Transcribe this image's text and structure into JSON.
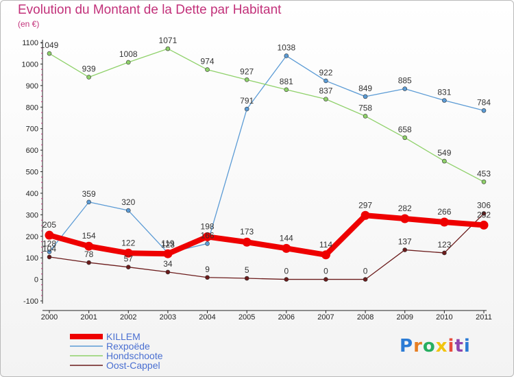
{
  "title": "Evolution du Montant de la Dette par Habitant",
  "subtitle": "(en €)",
  "logo": {
    "text": "Proxiti",
    "colors": [
      "#2b7bd5",
      "#e67e22",
      "#27ae60",
      "#f1c40f",
      "#e74c3c",
      "#8e44ad",
      "#2b7bd5"
    ]
  },
  "chart_data": {
    "type": "line",
    "title": "Evolution du Montant de la Dette par Habitant",
    "subtitle": "(en €)",
    "xlabel": "",
    "ylabel": "",
    "x": [
      "2000",
      "2001",
      "2002",
      "2003",
      "2004",
      "2005",
      "2006",
      "2007",
      "2008",
      "2009",
      "2010",
      "2011"
    ],
    "ylim": [
      -100,
      1100
    ],
    "yticks": [
      -100,
      0,
      100,
      200,
      300,
      400,
      500,
      600,
      700,
      800,
      900,
      1000,
      1100
    ],
    "grid": false,
    "legend_position": "bottom-left",
    "series": [
      {
        "name": "KILLEM",
        "color": "#ee0000",
        "highlight": true,
        "values": [
          205,
          154,
          122,
          119,
          198,
          173,
          144,
          114,
          297,
          282,
          266,
          252
        ],
        "labels": [
          "205",
          "154",
          "122",
          "119",
          "198",
          "173",
          "144",
          "114",
          "297",
          "282",
          "266",
          "252"
        ]
      },
      {
        "name": "Rexpoëde",
        "color": "#5b9bd5",
        "highlight": false,
        "values": [
          128,
          359,
          320,
          123,
          166,
          791,
          1038,
          922,
          849,
          885,
          831,
          784
        ],
        "labels": [
          "128",
          "359",
          "320",
          "123",
          "166",
          "791",
          "1038",
          "922",
          "849",
          "885",
          "831",
          "784"
        ]
      },
      {
        "name": "Hondschoote",
        "color": "#8fd16a",
        "highlight": false,
        "values": [
          1049,
          939,
          1008,
          1071,
          974,
          927,
          881,
          837,
          758,
          658,
          549,
          453
        ],
        "labels": [
          "1049",
          "939",
          "1008",
          "1071",
          "974",
          "927",
          "881",
          "837",
          "758",
          "658",
          "549",
          "453"
        ]
      },
      {
        "name": "Oost-Cappel",
        "color": "#6b1b1b",
        "highlight": false,
        "values": [
          104,
          78,
          57,
          34,
          9,
          5,
          0,
          0,
          0,
          137,
          123,
          306
        ],
        "labels": [
          "104",
          "78",
          "57",
          "34",
          "9",
          "5",
          "0",
          "0",
          "0",
          "137",
          "123",
          "306"
        ]
      }
    ]
  }
}
